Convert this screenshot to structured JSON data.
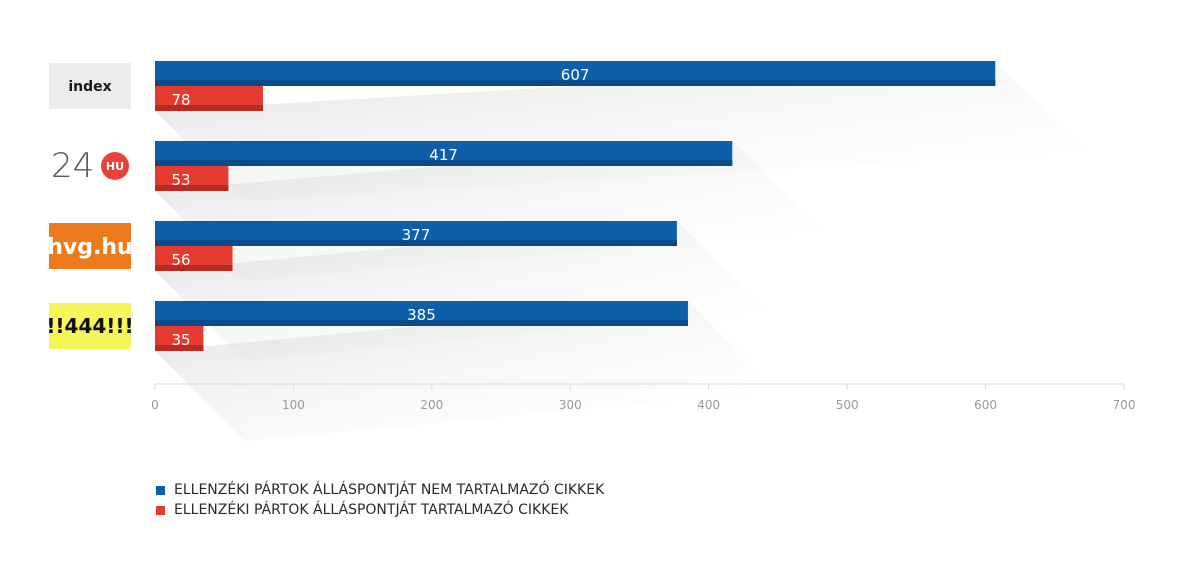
{
  "chart_data": {
    "type": "bar",
    "orientation": "horizontal",
    "categories": [
      "index",
      "24.hu",
      "hvg.hu",
      "444"
    ],
    "category_logos": [
      {
        "text": "index",
        "bg": "#ececec",
        "fg": "#1a1a1a"
      },
      {
        "text": "24",
        "badge": "HU",
        "bg": "#ffffff",
        "fg": "#555a60",
        "badge_color": "#e8423a"
      },
      {
        "text": "hvg.hu",
        "bg": "#ee7a1e",
        "fg": "#ffffff"
      },
      {
        "text": "!!444!!!",
        "bg": "#f4f65a",
        "fg": "#111111"
      }
    ],
    "series": [
      {
        "name": "ELLENZÉKI PÁRTOK ÁLLÁSPONTJÁT NEM TARTALMAZÓ CIKKEK",
        "values": [
          607,
          417,
          377,
          385
        ],
        "color": "#0d5faa",
        "shade": "#0a4a86"
      },
      {
        "name": "ELLENZÉKI PÁRTOK ÁLLÁSPONTJÁT TARTALMAZÓ CIKKEK",
        "values": [
          78,
          53,
          56,
          35
        ],
        "color": "#e53b30",
        "shade": "#b82a22"
      }
    ],
    "xlim": [
      0,
      700
    ],
    "xticks": [
      "0",
      "100",
      "200",
      "300",
      "400",
      "500",
      "600",
      "700"
    ],
    "grid": false,
    "legend_position": "bottom-left"
  }
}
